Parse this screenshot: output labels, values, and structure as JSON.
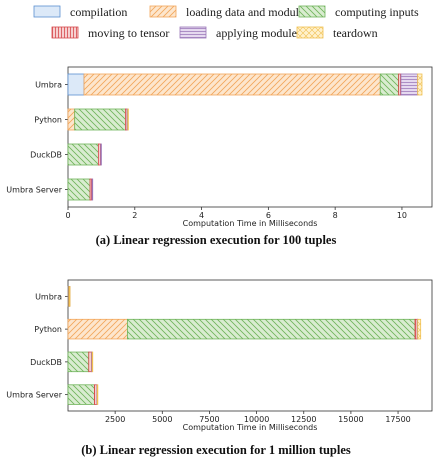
{
  "legend": [
    {
      "key": "compilation",
      "label": "compilation",
      "fill": "#dce9f8",
      "stroke": "#5b8fd0",
      "pattern": "none"
    },
    {
      "key": "loading",
      "label": "loading data and module",
      "fill": "#fde6cd",
      "stroke": "#f2a65a",
      "pattern": "diag"
    },
    {
      "key": "computing",
      "label": "computing inputs",
      "fill": "#d9ecd0",
      "stroke": "#6fb45a",
      "pattern": "backdiag"
    },
    {
      "key": "tensor",
      "label": "moving to tensor",
      "fill": "#f6d0d0",
      "stroke": "#d6484b",
      "pattern": "vert"
    },
    {
      "key": "applying",
      "label": "applying module",
      "fill": "#e5d9ef",
      "stroke": "#9a76b8",
      "pattern": "horiz"
    },
    {
      "key": "teardown",
      "label": "teardown",
      "fill": "#fff1cc",
      "stroke": "#f0c050",
      "pattern": "cross"
    }
  ],
  "chart_data": [
    {
      "type": "bar",
      "orientation": "horizontal",
      "stacked": true,
      "caption": "(a) Linear regression execution for 100 tuples",
      "xlabel": "Computation Time in Milliseconds",
      "xlim": [
        0,
        10.9
      ],
      "xticks": [
        0,
        2,
        4,
        6,
        8,
        10
      ],
      "xtick_labels": [
        "0",
        "2",
        "4",
        "6",
        "8",
        "10"
      ],
      "categories": [
        "Umbra",
        "Python",
        "DuckDB",
        "Umbra Server"
      ],
      "series": [
        {
          "name": "compilation",
          "key": "compilation",
          "values": [
            0.48,
            0,
            0,
            0
          ]
        },
        {
          "name": "loading data and module",
          "key": "loading",
          "values": [
            8.87,
            0.2,
            0.0,
            0.0
          ]
        },
        {
          "name": "computing inputs",
          "key": "computing",
          "values": [
            0.55,
            1.52,
            0.91,
            0.66
          ]
        },
        {
          "name": "moving to tensor",
          "key": "tensor",
          "values": [
            0.07,
            0.05,
            0.07,
            0.06
          ]
        },
        {
          "name": "applying module",
          "key": "applying",
          "values": [
            0.5,
            0.02,
            0.02,
            0.02
          ]
        },
        {
          "name": "teardown",
          "key": "teardown",
          "values": [
            0.13,
            0.01,
            0.0,
            0.0
          ]
        }
      ]
    },
    {
      "type": "bar",
      "orientation": "horizontal",
      "stacked": true,
      "caption": "(b) Linear regression execution for 1 million tuples",
      "xlabel": "Computation Time in Milliseconds",
      "xlim": [
        0,
        19300
      ],
      "xticks": [
        2500,
        5000,
        7500,
        10000,
        12500,
        15000,
        17500
      ],
      "xtick_labels": [
        "2500",
        "5000",
        "7500",
        "10000",
        "12500",
        "15000",
        "17500"
      ],
      "categories": [
        "Umbra",
        "Python",
        "DuckDB",
        "Umbra Server"
      ],
      "series": [
        {
          "name": "compilation",
          "key": "compilation",
          "values": [
            10,
            0,
            0,
            0
          ]
        },
        {
          "name": "loading data and module",
          "key": "loading",
          "values": [
            30,
            3150,
            0,
            0
          ]
        },
        {
          "name": "computing inputs",
          "key": "computing",
          "values": [
            20,
            15250,
            1100,
            1400
          ]
        },
        {
          "name": "moving to tensor",
          "key": "tensor",
          "values": [
            10,
            120,
            150,
            130
          ]
        },
        {
          "name": "applying module",
          "key": "applying",
          "values": [
            5,
            20,
            30,
            20
          ]
        },
        {
          "name": "teardown",
          "key": "teardown",
          "values": [
            5,
            160,
            20,
            20
          ]
        }
      ]
    }
  ]
}
